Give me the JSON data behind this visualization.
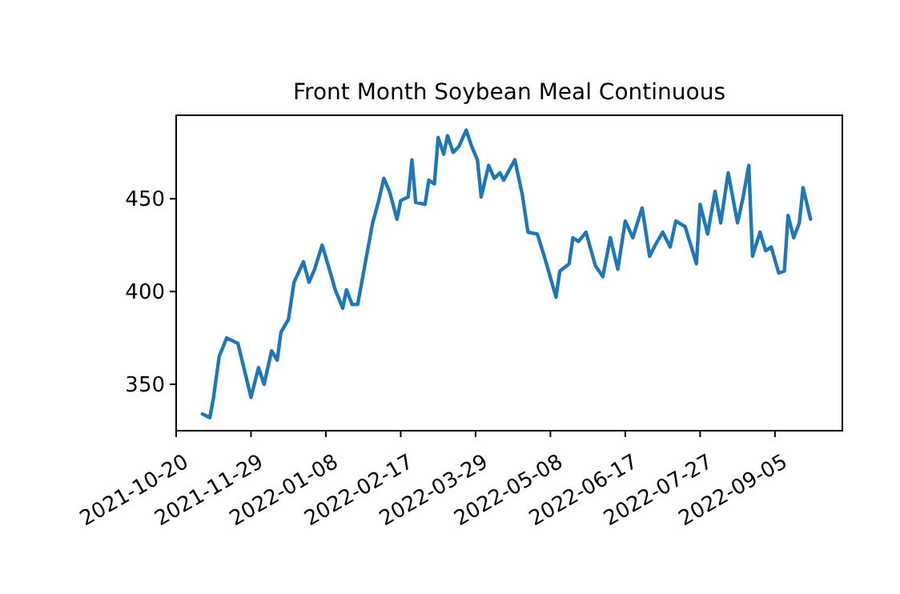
{
  "chart_data": {
    "type": "line",
    "title": "Front Month Soybean Meal Continuous",
    "xlim": [
      "2021-10-20",
      "2022-10-11"
    ],
    "xticks": [
      "2021-10-20",
      "2021-11-29",
      "2022-01-08",
      "2022-02-17",
      "2022-03-29",
      "2022-05-08",
      "2022-06-17",
      "2022-07-27",
      "2022-09-05"
    ],
    "ylim": [
      325,
      495
    ],
    "yticks": [
      350,
      400,
      450
    ],
    "grid": false,
    "line_style": "solid",
    "series": [
      {
        "color": "#1f77b4",
        "x": [
          "2021-11-03",
          "2021-11-07",
          "2021-11-09",
          "2021-11-12",
          "2021-11-16",
          "2021-11-22",
          "2021-11-29",
          "2021-12-03",
          "2021-12-06",
          "2021-12-10",
          "2021-12-13",
          "2021-12-15",
          "2021-12-19",
          "2021-12-22",
          "2021-12-27",
          "2021-12-30",
          "2022-01-02",
          "2022-01-06",
          "2022-01-09",
          "2022-01-13",
          "2022-01-17",
          "2022-01-19",
          "2022-01-22",
          "2022-01-25",
          "2022-01-29",
          "2022-02-02",
          "2022-02-05",
          "2022-02-08",
          "2022-02-11",
          "2022-02-15",
          "2022-02-17",
          "2022-02-21",
          "2022-02-23",
          "2022-02-25",
          "2022-03-02",
          "2022-03-04",
          "2022-03-07",
          "2022-03-09",
          "2022-03-12",
          "2022-03-14",
          "2022-03-17",
          "2022-03-20",
          "2022-03-24",
          "2022-03-27",
          "2022-03-30",
          "2022-04-01",
          "2022-04-05",
          "2022-04-08",
          "2022-04-11",
          "2022-04-13",
          "2022-04-19",
          "2022-04-23",
          "2022-04-26",
          "2022-05-01",
          "2022-05-05",
          "2022-05-11",
          "2022-05-13",
          "2022-05-18",
          "2022-05-20",
          "2022-05-23",
          "2022-05-27",
          "2022-06-01",
          "2022-06-05",
          "2022-06-09",
          "2022-06-13",
          "2022-06-17",
          "2022-06-21",
          "2022-06-26",
          "2022-06-30",
          "2022-07-03",
          "2022-07-07",
          "2022-07-11",
          "2022-07-14",
          "2022-07-19",
          "2022-07-25",
          "2022-07-27",
          "2022-07-31",
          "2022-08-04",
          "2022-08-07",
          "2022-08-11",
          "2022-08-16",
          "2022-08-19",
          "2022-08-22",
          "2022-08-24",
          "2022-08-28",
          "2022-08-31",
          "2022-09-03",
          "2022-09-07",
          "2022-09-10",
          "2022-09-12",
          "2022-09-15",
          "2022-09-18",
          "2022-09-20",
          "2022-09-24"
        ],
        "values": [
          334,
          332,
          343,
          365,
          375,
          372,
          343,
          359,
          350,
          368,
          363,
          378,
          385,
          405,
          416,
          405,
          412,
          425,
          415,
          401,
          391,
          401,
          393,
          393,
          415,
          437,
          448,
          461,
          454,
          439,
          449,
          451,
          471,
          448,
          447,
          460,
          458,
          483,
          474,
          484,
          475,
          478,
          487,
          478,
          471,
          451,
          468,
          461,
          464,
          460,
          471,
          452,
          432,
          431,
          418,
          397,
          411,
          415,
          429,
          427,
          432,
          414,
          408,
          429,
          412,
          438,
          429,
          445,
          419,
          425,
          432,
          424,
          438,
          435,
          415,
          447,
          431,
          454,
          437,
          464,
          437,
          451,
          468,
          419,
          432,
          422,
          424,
          410,
          411,
          441,
          429,
          437,
          456,
          439
        ]
      }
    ]
  }
}
